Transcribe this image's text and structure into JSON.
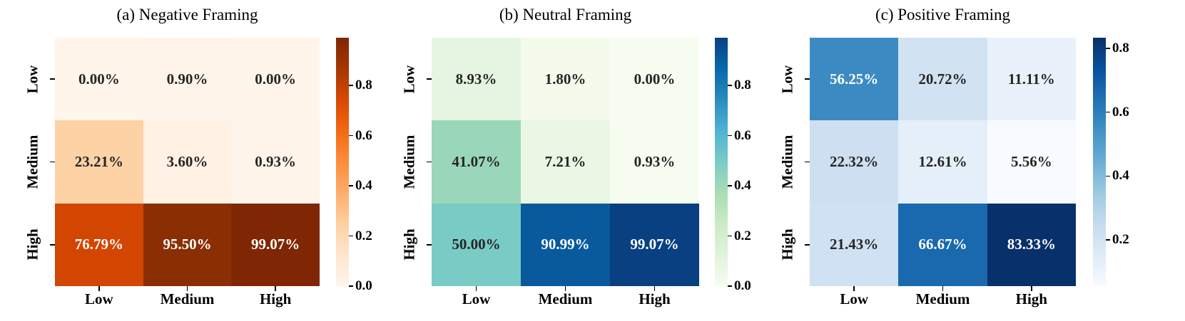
{
  "figure": {
    "background": "#ffffff",
    "annotation_dark_color": "#262626",
    "annotation_light_color": "#ffffff"
  },
  "panels": [
    {
      "title": "(a) Negative Framing",
      "row_labels": [
        "Low",
        "Medium",
        "High"
      ],
      "col_labels": [
        "Low",
        "Medium",
        "High"
      ],
      "cells": [
        [
          {
            "label": "0.00%",
            "bg": "#fff5eb",
            "fg": "#262626"
          },
          {
            "label": "0.90%",
            "bg": "#fff4e9",
            "fg": "#262626"
          },
          {
            "label": "0.00%",
            "bg": "#fff5eb",
            "fg": "#262626"
          }
        ],
        [
          {
            "label": "23.21%",
            "bg": "#fdd3a6",
            "fg": "#262626"
          },
          {
            "label": "3.60%",
            "bg": "#fff1e3",
            "fg": "#262626"
          },
          {
            "label": "0.93%",
            "bg": "#fff4e9",
            "fg": "#262626"
          }
        ],
        [
          {
            "label": "76.79%",
            "bg": "#d24602",
            "fg": "#ffffff"
          },
          {
            "label": "95.50%",
            "bg": "#8a2e04",
            "fg": "#ffffff"
          },
          {
            "label": "99.07%",
            "bg": "#7f2704",
            "fg": "#ffffff"
          }
        ]
      ],
      "colorbar": {
        "gradient_bottom_to_top": [
          "#fff5eb",
          "#fee6ce",
          "#fdd0a2",
          "#fdae6b",
          "#fd8d3c",
          "#f16913",
          "#d94801",
          "#a63603",
          "#7f2704"
        ],
        "ticks": [
          {
            "label": "0.0",
            "pos": 0.0
          },
          {
            "label": "0.2",
            "pos": 0.2019
          },
          {
            "label": "0.4",
            "pos": 0.4038
          },
          {
            "label": "0.6",
            "pos": 0.6056
          },
          {
            "label": "0.8",
            "pos": 0.8075
          }
        ]
      }
    },
    {
      "title": "(b) Neutral Framing",
      "row_labels": [
        "Low",
        "Medium",
        "High"
      ],
      "col_labels": [
        "Low",
        "Medium",
        "High"
      ],
      "cells": [
        [
          {
            "label": "8.93%",
            "bg": "#e6f5e1",
            "fg": "#262626"
          },
          {
            "label": "1.80%",
            "bg": "#f4fbed",
            "fg": "#262626"
          },
          {
            "label": "0.00%",
            "bg": "#f7fcf0",
            "fg": "#262626"
          }
        ],
        [
          {
            "label": "41.07%",
            "bg": "#9ad7ba",
            "fg": "#262626"
          },
          {
            "label": "7.21%",
            "bg": "#eaf7e4",
            "fg": "#262626"
          },
          {
            "label": "0.93%",
            "bg": "#f6fcef",
            "fg": "#262626"
          }
        ],
        [
          {
            "label": "50.00%",
            "bg": "#79cbc5",
            "fg": "#262626"
          },
          {
            "label": "90.99%",
            "bg": "#085a9d",
            "fg": "#ffffff"
          },
          {
            "label": "99.07%",
            "bg": "#084081",
            "fg": "#ffffff"
          }
        ]
      ],
      "colorbar": {
        "gradient_bottom_to_top": [
          "#f7fcf0",
          "#e0f3db",
          "#ccebc5",
          "#a8ddb5",
          "#7bccc4",
          "#4eb3d3",
          "#2b8cbe",
          "#0868ac",
          "#084081"
        ],
        "ticks": [
          {
            "label": "0.0",
            "pos": 0.0
          },
          {
            "label": "0.2",
            "pos": 0.2019
          },
          {
            "label": "0.4",
            "pos": 0.4038
          },
          {
            "label": "0.6",
            "pos": 0.6056
          },
          {
            "label": "0.8",
            "pos": 0.8075
          }
        ]
      }
    },
    {
      "title": "(c) Positive Framing",
      "row_labels": [
        "Low",
        "Medium",
        "High"
      ],
      "col_labels": [
        "Low",
        "Medium",
        "High"
      ],
      "cells": [
        [
          {
            "label": "56.25%",
            "bg": "#3b8bc2",
            "fg": "#ffffff"
          },
          {
            "label": "20.72%",
            "bg": "#d1e2f2",
            "fg": "#262626"
          },
          {
            "label": "11.11%",
            "bg": "#e9f2fa",
            "fg": "#262626"
          }
        ],
        [
          {
            "label": "22.32%",
            "bg": "#cddff1",
            "fg": "#262626"
          },
          {
            "label": "12.61%",
            "bg": "#e5eff9",
            "fg": "#262626"
          },
          {
            "label": "5.56%",
            "bg": "#f7fbff",
            "fg": "#262626"
          }
        ],
        [
          {
            "label": "21.43%",
            "bg": "#cfe1f2",
            "fg": "#262626"
          },
          {
            "label": "66.67%",
            "bg": "#1a68ae",
            "fg": "#ffffff"
          },
          {
            "label": "83.33%",
            "bg": "#08306b",
            "fg": "#ffffff"
          }
        ]
      ],
      "colorbar": {
        "gradient_bottom_to_top": [
          "#f7fbff",
          "#deebf7",
          "#c6dbef",
          "#9ecae1",
          "#6baed6",
          "#4292c6",
          "#2171b5",
          "#08519c",
          "#08306b"
        ],
        "ticks": [
          {
            "label": "0.2",
            "pos": 0.1857
          },
          {
            "label": "0.4",
            "pos": 0.4429
          },
          {
            "label": "0.6",
            "pos": 0.7
          },
          {
            "label": "0.8",
            "pos": 0.9571
          }
        ]
      }
    }
  ],
  "chart_data": [
    {
      "type": "heatmap",
      "title": "(a) Negative Framing",
      "rows": [
        "Low",
        "Medium",
        "High"
      ],
      "columns": [
        "Low",
        "Medium",
        "High"
      ],
      "values_percent": [
        [
          0.0,
          0.9,
          0.0
        ],
        [
          23.21,
          3.6,
          0.93
        ],
        [
          76.79,
          95.5,
          99.07
        ]
      ],
      "annotation_format": "percent, two decimals",
      "colormap": "Oranges",
      "colorbar_range": [
        0.0,
        0.9907
      ],
      "colorbar_ticks": [
        0.0,
        0.2,
        0.4,
        0.6,
        0.8
      ],
      "legend_position": "right"
    },
    {
      "type": "heatmap",
      "title": "(b) Neutral Framing",
      "rows": [
        "Low",
        "Medium",
        "High"
      ],
      "columns": [
        "Low",
        "Medium",
        "High"
      ],
      "values_percent": [
        [
          8.93,
          1.8,
          0.0
        ],
        [
          41.07,
          7.21,
          0.93
        ],
        [
          50.0,
          90.99,
          99.07
        ]
      ],
      "annotation_format": "percent, two decimals",
      "colormap": "GnBu",
      "colorbar_range": [
        0.0,
        0.9907
      ],
      "colorbar_ticks": [
        0.0,
        0.2,
        0.4,
        0.6,
        0.8
      ],
      "legend_position": "right"
    },
    {
      "type": "heatmap",
      "title": "(c) Positive Framing",
      "rows": [
        "Low",
        "Medium",
        "High"
      ],
      "columns": [
        "Low",
        "Medium",
        "High"
      ],
      "values_percent": [
        [
          56.25,
          20.72,
          11.11
        ],
        [
          22.32,
          12.61,
          5.56
        ],
        [
          21.43,
          66.67,
          83.33
        ]
      ],
      "annotation_format": "percent, two decimals",
      "colormap": "Blues",
      "colorbar_range": [
        0.0556,
        0.8333
      ],
      "colorbar_ticks": [
        0.2,
        0.4,
        0.6,
        0.8
      ],
      "legend_position": "right"
    }
  ]
}
